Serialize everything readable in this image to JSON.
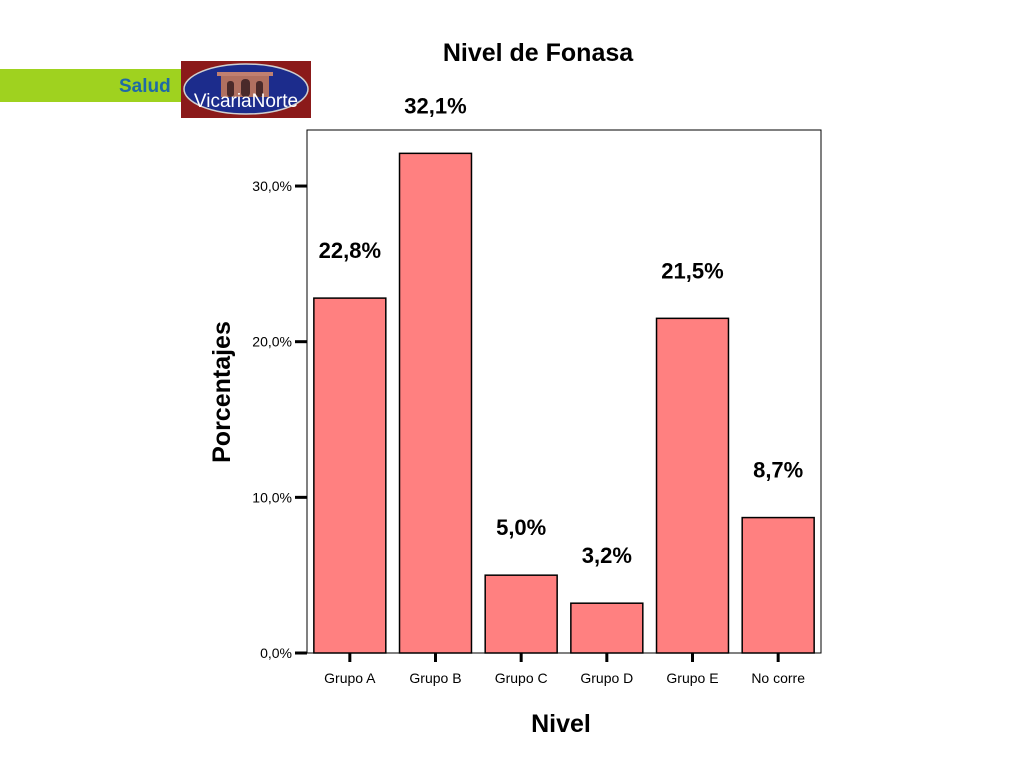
{
  "header": {
    "brand_label": "Salud",
    "logo_text": "VicariaNorte"
  },
  "colors": {
    "band": "#9fd21f",
    "bar_fill": "#ff8080",
    "logo_bg": "#8b1a1a",
    "logo_oval": "#1c2c8c"
  },
  "chart_data": {
    "type": "bar",
    "title": "Nivel de Fonasa",
    "xlabel": "Nivel",
    "ylabel": "Porcentajes",
    "categories": [
      "Grupo A",
      "Grupo B",
      "Grupo C",
      "Grupo D",
      "Grupo E",
      "No corre"
    ],
    "values": [
      22.8,
      32.1,
      5.0,
      3.2,
      21.5,
      8.7
    ],
    "value_labels": [
      "22,8%",
      "32,1%",
      "5,0%",
      "3,2%",
      "21,5%",
      "8,7%"
    ],
    "yticks": [
      0,
      10,
      20,
      30
    ],
    "ytick_labels": [
      "0,0%",
      "10,0%",
      "20,0%",
      "30,0%"
    ],
    "ylim": [
      0,
      33.6
    ],
    "grid": false,
    "legend": "none"
  }
}
